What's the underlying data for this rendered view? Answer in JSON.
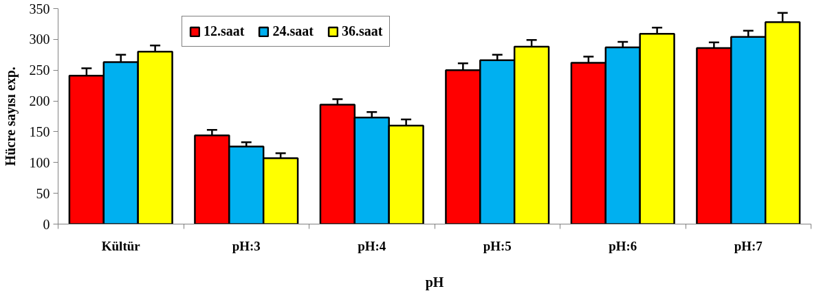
{
  "chart_data": {
    "type": "bar",
    "xlabel": "pH",
    "ylabel": "Hücre sayısı exp.",
    "categories": [
      "Kültür",
      "pH:3",
      "pH:4",
      "pH:5",
      "pH:6",
      "pH:7"
    ],
    "series": [
      {
        "name": "12.saat",
        "color": "#ff0000",
        "values": [
          241,
          144,
          194,
          250,
          262,
          286
        ],
        "errors": [
          [
            241,
            253
          ],
          [
            144,
            153
          ],
          [
            194,
            203
          ],
          [
            250,
            261
          ],
          [
            262,
            272
          ],
          [
            286,
            295
          ]
        ]
      },
      {
        "name": "24.saat",
        "color": "#00b0f0",
        "values": [
          263,
          126,
          173,
          266,
          287,
          304
        ],
        "errors": [
          [
            263,
            275
          ],
          [
            126,
            133
          ],
          [
            173,
            182
          ],
          [
            266,
            275
          ],
          [
            287,
            296
          ],
          [
            304,
            314
          ]
        ]
      },
      {
        "name": "36.saat",
        "color": "#ffff00",
        "values": [
          280,
          107,
          160,
          288,
          309,
          328
        ],
        "errors": [
          [
            280,
            290
          ],
          [
            107,
            115
          ],
          [
            160,
            170
          ],
          [
            288,
            299
          ],
          [
            309,
            319
          ],
          [
            328,
            343
          ]
        ]
      }
    ],
    "ylim": [
      0,
      350
    ],
    "yticks": [
      0,
      50,
      100,
      150,
      200,
      250,
      300,
      350
    ],
    "grid": false,
    "legend": "top"
  }
}
